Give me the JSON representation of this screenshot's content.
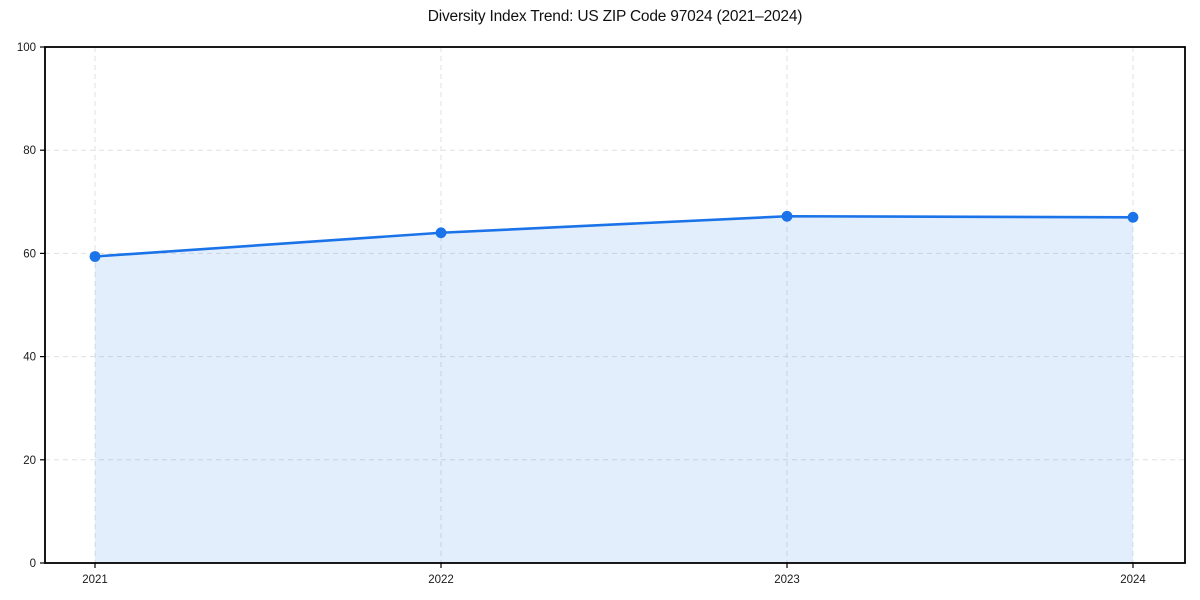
{
  "chart_data": {
    "type": "area",
    "title": "Diversity Index Trend: US ZIP Code 97024 (2021–2024)",
    "series_name": "Diversity Index",
    "categories": [
      "2021",
      "2022",
      "2023",
      "2024"
    ],
    "values": [
      59.4,
      64.0,
      67.2,
      67.0
    ],
    "xlabel": "",
    "ylabel": "",
    "ylim": [
      0,
      100
    ],
    "yticks": [
      0,
      20,
      40,
      60,
      80,
      100
    ],
    "grid": "dashed-both-axes",
    "legend_position": "none",
    "colors": {
      "line": "#1a73e8",
      "marker": "#1a73e8",
      "fill": "#1a73e8",
      "fill_opacity": 0.12,
      "grid": "#e0e0e0",
      "axis": "#000000",
      "tick_label": "#1a1a1a",
      "background": "#ffffff"
    }
  }
}
